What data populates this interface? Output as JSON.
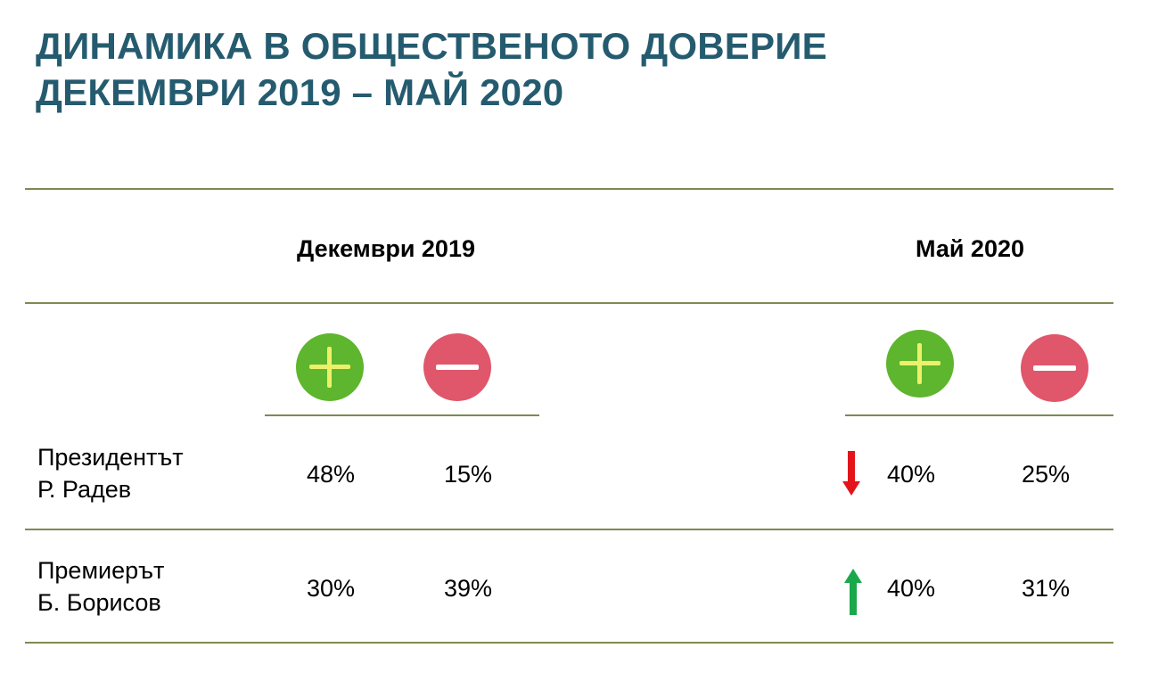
{
  "title": {
    "line1": "ДИНАМИКА В ОБЩЕСТВЕНОТО ДОВЕРИЕ",
    "line2": "ДЕКЕМВРИ 2019 – МАЙ 2020"
  },
  "columns": {
    "period1": "Декември 2019",
    "period2": "Май 2020"
  },
  "icons": {
    "positive": "plus-icon",
    "negative": "minus-icon",
    "down": "arrow-down-icon",
    "up": "arrow-up-icon"
  },
  "rows": [
    {
      "label_line1": "Президентът",
      "label_line2": "Р. Радев",
      "dec_positive": "48%",
      "dec_negative": "15%",
      "may_trend": "down",
      "may_positive": "40%",
      "may_negative": "25%"
    },
    {
      "label_line1": "Премиерът",
      "label_line2": "Б. Борисов",
      "dec_positive": "30%",
      "dec_negative": "39%",
      "may_trend": "up",
      "may_positive": "40%",
      "may_negative": "31%"
    }
  ],
  "colors": {
    "title": "#255b6f",
    "rule": "#7d8a52",
    "positive": "#5eb52e",
    "negative": "#e0566a",
    "down_arrow": "#e4141b",
    "up_arrow": "#1aa84a"
  }
}
